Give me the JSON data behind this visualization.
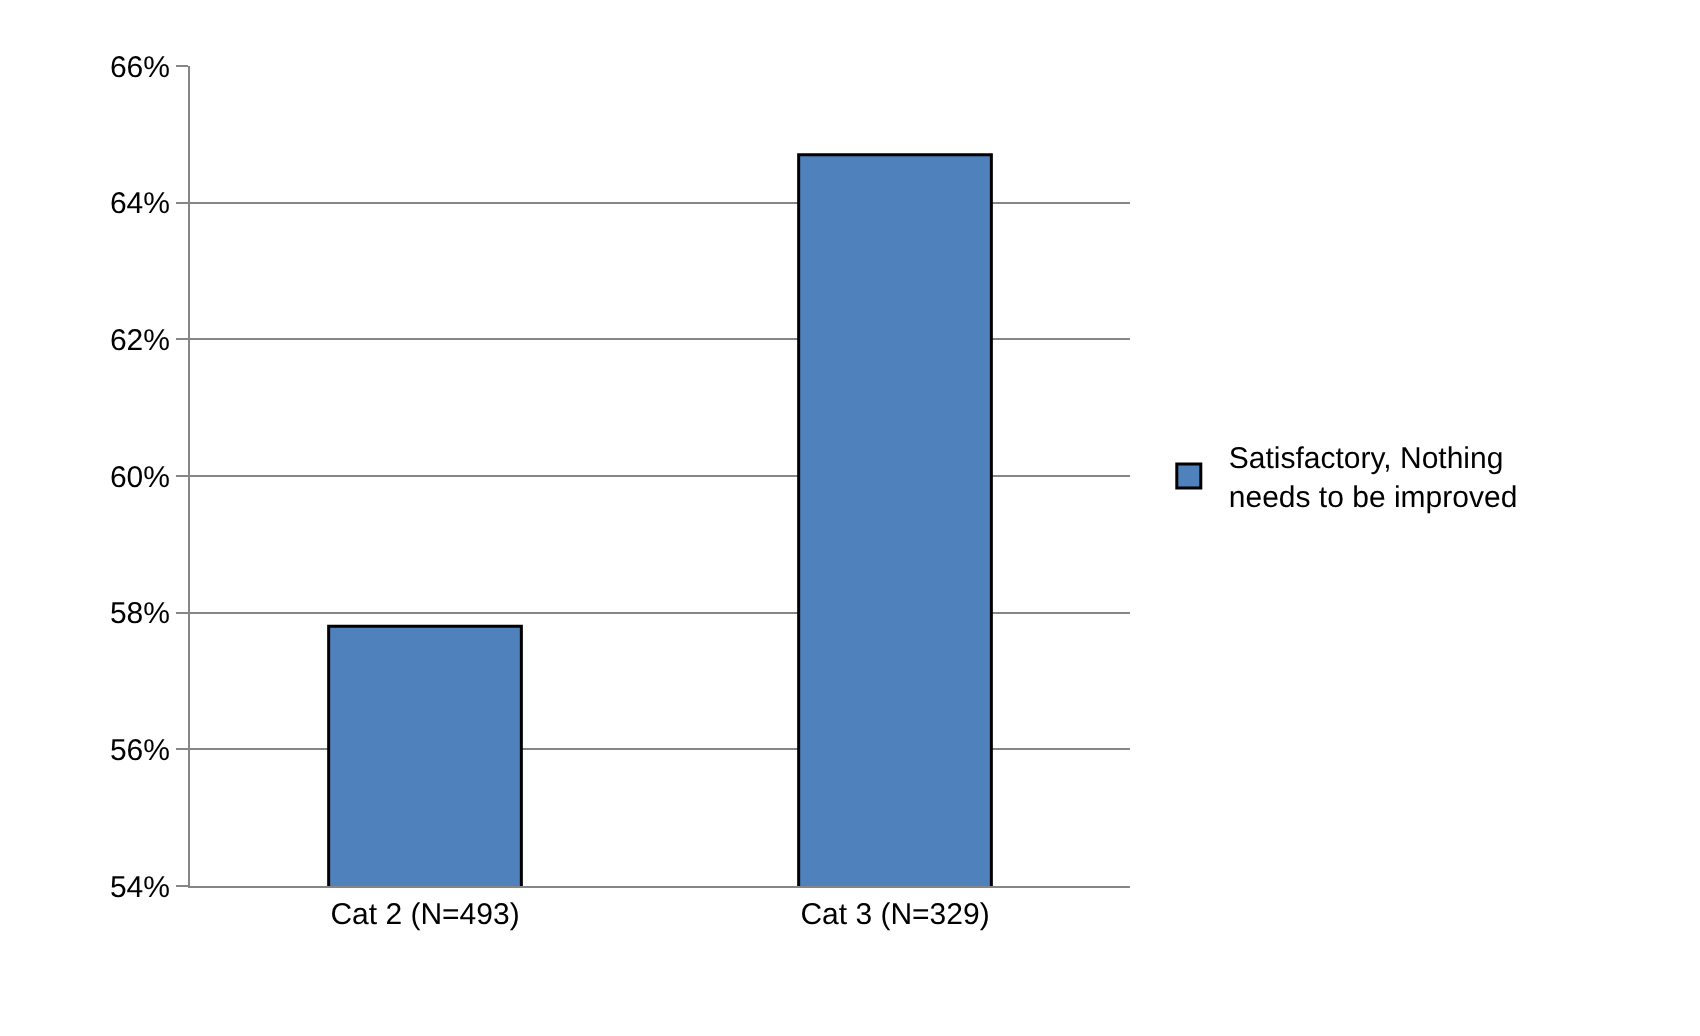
{
  "chart_data": {
    "type": "bar",
    "categories": [
      "Cat 2 (N=493)",
      "Cat 3 (N=329)"
    ],
    "series": [
      {
        "name": "Satisfactory, Nothing needs to be improved",
        "color": "#4f81bd",
        "values": [
          57.8,
          64.7
        ]
      }
    ],
    "ylim": [
      54,
      66
    ],
    "yticks": [
      {
        "value": 54,
        "label": "54%"
      },
      {
        "value": 56,
        "label": "56%"
      },
      {
        "value": 58,
        "label": "58%"
      },
      {
        "value": 60,
        "label": "60%"
      },
      {
        "value": 62,
        "label": "62%"
      },
      {
        "value": 64,
        "label": "64%"
      },
      {
        "value": 66,
        "label": "66%"
      }
    ],
    "grid": "y",
    "legend": "right"
  }
}
